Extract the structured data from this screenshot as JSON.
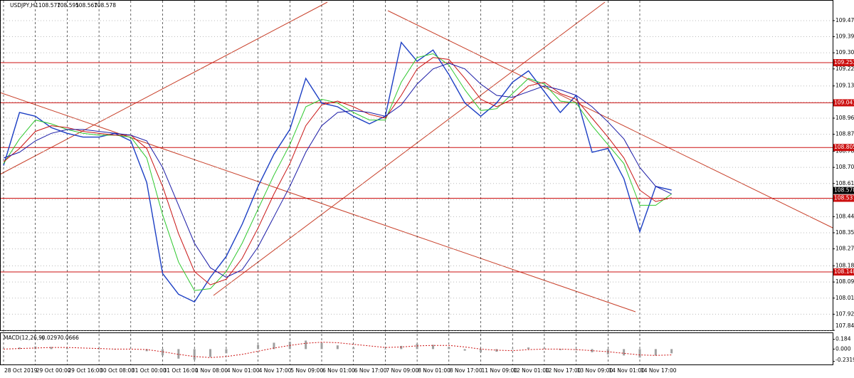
{
  "chart_data": [
    {
      "type": "line",
      "title": "USDJPY,H1",
      "last_bar": {
        "open": 108.577,
        "high": 108.595,
        "low": 108.567,
        "close": 108.578
      },
      "categories": [
        "28 Oct 2019",
        null,
        "29 Oct 00:00",
        null,
        "29 Oct 16:00",
        null,
        "30 Oct 08:00",
        null,
        "31 Oct 00:00",
        null,
        "31 Oct 16:00",
        null,
        "1 Nov 08:00",
        null,
        "4 Nov 01:00",
        null,
        "4 Nov 17:00",
        null,
        "5 Nov 09:00",
        null,
        "6 Nov 01:00",
        null,
        "6 Nov 17:00",
        null,
        "7 Nov 09:00",
        null,
        "8 Nov 01:00",
        null,
        "8 Nov 17:00",
        null,
        "11 Nov 09:00",
        null,
        "12 Nov 01:00",
        null,
        "12 Nov 17:00",
        null,
        "13 Nov 09:00",
        null,
        "14 Nov 01:00",
        null,
        "14 Nov 17:00",
        null,
        null
      ],
      "series": [
        {
          "color": "#1c3fc4",
          "values": [
            108.71,
            108.99,
            108.97,
            108.91,
            108.88,
            108.86,
            108.86,
            108.88,
            108.84,
            108.62,
            108.14,
            108.03,
            107.99,
            108.12,
            108.23,
            108.4,
            108.6,
            108.77,
            108.9,
            109.17,
            109.04,
            109.02,
            108.97,
            108.93,
            108.97,
            109.36,
            109.26,
            109.32,
            109.19,
            109.04,
            108.97,
            109.04,
            109.15,
            109.21,
            109.1,
            108.99,
            109.08,
            108.78,
            108.8,
            108.64,
            108.36,
            108.6,
            108.58
          ]
        },
        {
          "color": "#2ec82e",
          "values": [
            108.72,
            108.85,
            108.95,
            108.93,
            108.9,
            108.88,
            108.87,
            108.87,
            108.86,
            108.75,
            108.45,
            108.2,
            108.05,
            108.06,
            108.15,
            108.3,
            108.48,
            108.66,
            108.82,
            109.02,
            109.06,
            109.04,
            108.99,
            108.95,
            108.95,
            109.15,
            109.28,
            109.3,
            109.24,
            109.11,
            109.0,
            109.01,
            109.09,
            109.17,
            109.14,
            109.05,
            109.04,
            108.92,
            108.82,
            108.72,
            108.5,
            108.5,
            108.56
          ]
        },
        {
          "color": "#c81414",
          "values": [
            108.73,
            108.8,
            108.89,
            108.92,
            108.91,
            108.89,
            108.88,
            108.87,
            108.87,
            108.8,
            108.6,
            108.35,
            108.15,
            108.08,
            108.11,
            108.22,
            108.38,
            108.56,
            108.72,
            108.92,
            109.03,
            109.05,
            109.02,
            108.98,
            108.96,
            109.08,
            109.22,
            109.28,
            109.27,
            109.17,
            109.06,
            109.02,
            109.06,
            109.13,
            109.15,
            109.09,
            109.06,
            108.96,
            108.86,
            108.75,
            108.58,
            108.52,
            108.54
          ]
        },
        {
          "color": "#1a1aa6",
          "values": [
            108.75,
            108.78,
            108.84,
            108.88,
            108.9,
            108.9,
            108.89,
            108.88,
            108.87,
            108.84,
            108.7,
            108.5,
            108.3,
            108.17,
            108.12,
            108.16,
            108.28,
            108.44,
            108.6,
            108.78,
            108.92,
            108.99,
            109.0,
            108.99,
            108.97,
            109.03,
            109.14,
            109.22,
            109.25,
            109.22,
            109.14,
            109.08,
            109.07,
            109.1,
            109.13,
            109.11,
            109.08,
            109.02,
            108.94,
            108.85,
            108.7,
            108.6,
            108.56
          ]
        }
      ],
      "levels": [
        {
          "value": 109.253,
          "color": "#cc1010"
        },
        {
          "value": 109.041,
          "color": "#cc1010"
        },
        {
          "value": 108.805,
          "color": "#cc1010"
        },
        {
          "value": 108.537,
          "color": "#cc1010"
        },
        {
          "value": 108.148,
          "color": "#cc1010"
        }
      ],
      "ylim": [
        107.84,
        109.58
      ],
      "yticks": [
        109.475,
        {
          "value": 109.39,
          "label": "109.390"
        },
        109.305,
        {
          "value": 109.22,
          "label": "109.220"
        },
        {
          "value": 109.13,
          "label": "109.130"
        },
        109.045,
        {
          "value": 108.96,
          "label": "108.960"
        },
        108.875,
        108.785,
        {
          "value": 108.7,
          "label": "108.700"
        },
        108.615,
        {
          "value": 108.53,
          "label": "108.530"
        },
        {
          "value": 108.44,
          "label": "108.440"
        },
        108.355,
        {
          "value": 108.27,
          "label": "108.270"
        },
        {
          "value": 108.18,
          "label": "108.180"
        },
        108.095,
        {
          "value": 108.01,
          "label": "108.010"
        },
        107.925,
        {
          "value": 107.84,
          "label": "107.840"
        }
      ],
      "grid": true
    },
    {
      "type": "macd",
      "title": "MACD(12,26,9)",
      "main_value": -0.0297,
      "signal_value": -0.0666,
      "histogram": {
        "color": "#a0a0a0",
        "values": [
          0.01,
          0.03,
          0.05,
          0.04,
          0.02,
          0.0,
          -0.01,
          -0.01,
          0.0,
          -0.04,
          -0.12,
          -0.18,
          -0.2,
          -0.15,
          -0.08,
          0.0,
          0.08,
          0.12,
          0.14,
          0.16,
          0.12,
          0.07,
          0.03,
          0.0,
          -0.01,
          0.06,
          0.1,
          0.08,
          0.04,
          -0.03,
          -0.06,
          -0.05,
          -0.01,
          0.03,
          0.02,
          -0.02,
          -0.02,
          -0.06,
          -0.1,
          -0.12,
          -0.16,
          -0.12,
          -0.08
        ]
      },
      "signal": {
        "color": "#cc1010",
        "values": [
          0.0,
          0.01,
          0.02,
          0.03,
          0.03,
          0.02,
          0.01,
          0.0,
          0.0,
          -0.01,
          -0.05,
          -0.1,
          -0.14,
          -0.16,
          -0.14,
          -0.1,
          -0.04,
          0.02,
          0.07,
          0.11,
          0.13,
          0.12,
          0.09,
          0.06,
          0.03,
          0.04,
          0.06,
          0.07,
          0.07,
          0.04,
          0.0,
          -0.02,
          -0.03,
          -0.01,
          0.0,
          0.0,
          -0.01,
          -0.03,
          -0.05,
          -0.08,
          -0.11,
          -0.12,
          -0.11
        ]
      },
      "ylim": [
        -0.29,
        0.3
      ],
      "yticks": [
        0.184,
        {
          "value": 0,
          "label": "0.000"
        },
        -0.2319
      ]
    }
  ]
}
